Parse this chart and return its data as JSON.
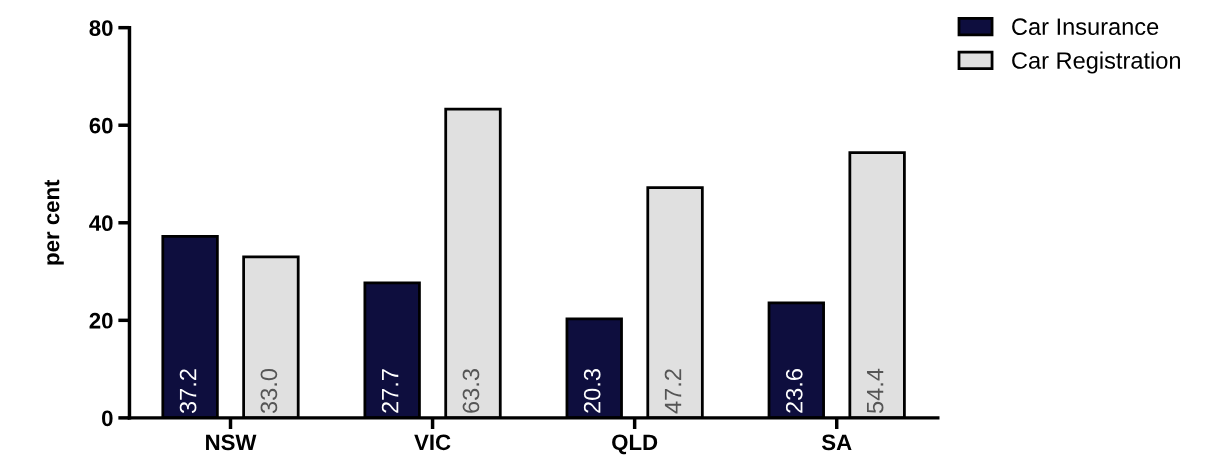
{
  "chart_data": {
    "type": "bar",
    "ylabel": "per cent",
    "categories": [
      "NSW",
      "VIC",
      "QLD",
      "SA"
    ],
    "series": [
      {
        "name": "Car Insurance",
        "color": "#0e0e3e",
        "values": [
          37.2,
          27.7,
          20.3,
          23.6
        ],
        "value_labels": [
          "37.2",
          "27.7",
          "20.3",
          "23.6"
        ]
      },
      {
        "name": "Car Registration",
        "color": "#e0e0e0",
        "values": [
          33.0,
          63.3,
          47.2,
          54.4
        ],
        "value_labels": [
          "33.0",
          "63.3",
          "47.2",
          "54.4"
        ]
      }
    ],
    "ylim": [
      0,
      80
    ],
    "yticks": [
      0,
      20,
      40,
      60,
      80
    ],
    "legend": "top right",
    "grid": false
  }
}
